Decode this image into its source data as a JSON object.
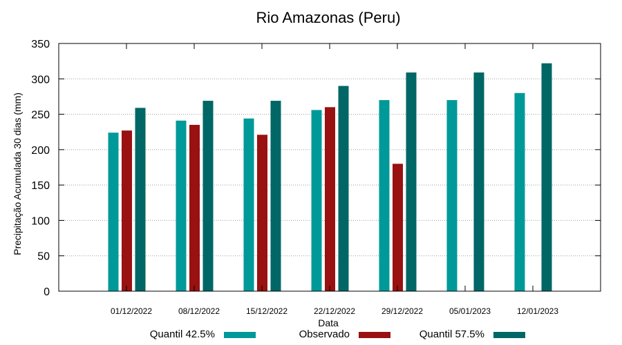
{
  "chart_data": {
    "type": "bar",
    "title": "Rio Amazonas (Peru)",
    "xlabel": "Data",
    "ylabel": "Precipitação Acumulada 30 dias (mm)",
    "ylim": [
      0,
      350
    ],
    "yticks": [
      0,
      50,
      100,
      150,
      200,
      250,
      300,
      350
    ],
    "grid": true,
    "legend_position": "bottom",
    "categories": [
      "01/12/2022",
      "08/12/2022",
      "15/12/2022",
      "22/12/2022",
      "29/12/2022",
      "05/01/2023",
      "12/01/2023"
    ],
    "series": [
      {
        "name": "Quantil 42.5%",
        "color": "#009999",
        "values": [
          224,
          241,
          244,
          256,
          270,
          270,
          280
        ]
      },
      {
        "name": "Observado",
        "color": "#991111",
        "values": [
          227,
          235,
          221,
          260,
          180,
          null,
          null
        ]
      },
      {
        "name": "Quantil 57.5%",
        "color": "#006666",
        "values": [
          259,
          269,
          269,
          290,
          309,
          309,
          322
        ]
      }
    ]
  }
}
